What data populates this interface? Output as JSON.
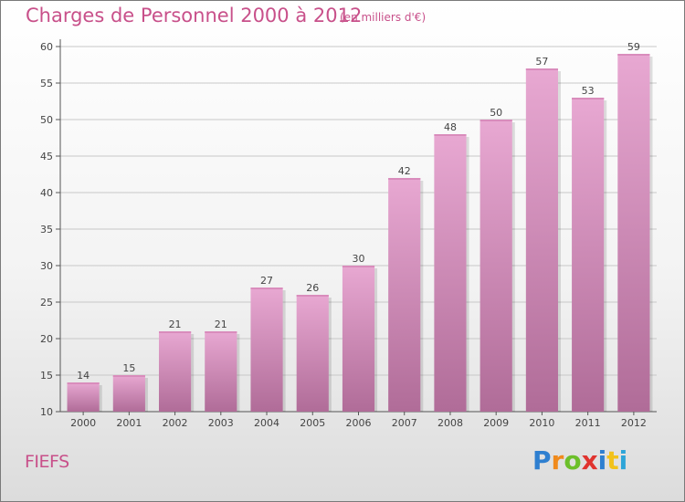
{
  "title": "Charges de Personnel 2000 à 2012",
  "subtitle": "(en milliers d'€)",
  "place": "FIEFS",
  "brand": {
    "letters": [
      "P",
      "r",
      "o",
      "x",
      "i",
      "t",
      "i"
    ],
    "colors": [
      "#2e7fd0",
      "#f08a1c",
      "#6cbf2a",
      "#e0342f",
      "#2e7fd0",
      "#f2c21a",
      "#2ea5d8"
    ]
  },
  "colors": {
    "bar_light": "#e8a8d2",
    "bar_dark": "#b06c98",
    "grid": "#c8c8c8",
    "axis": "#555555"
  },
  "chart_data": {
    "type": "bar",
    "title": "Charges de Personnel 2000 à 2012",
    "subtitle": "(en milliers d'€)",
    "categories": [
      "2000",
      "2001",
      "2002",
      "2003",
      "2004",
      "2005",
      "2006",
      "2007",
      "2008",
      "2009",
      "2010",
      "2011",
      "2012"
    ],
    "values": [
      14,
      15,
      21,
      21,
      27,
      26,
      30,
      42,
      48,
      50,
      57,
      53,
      59
    ],
    "ylim": [
      10,
      60
    ],
    "yticks": [
      10,
      15,
      20,
      25,
      30,
      35,
      40,
      45,
      50,
      55,
      60
    ],
    "xlabel": "",
    "ylabel": "",
    "grid": true
  }
}
